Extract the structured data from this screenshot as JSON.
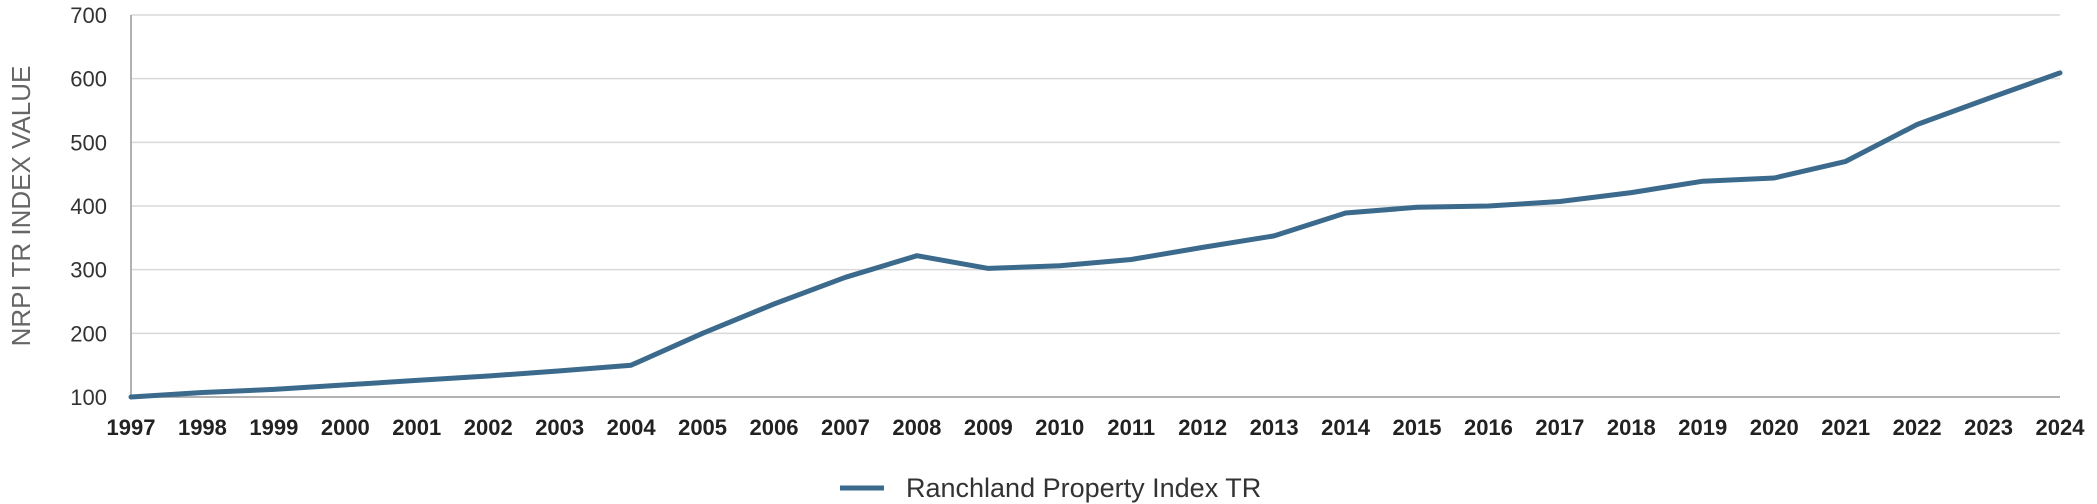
{
  "chart_data": {
    "type": "line",
    "ylabel": "NRPI TR INDEX VALUE",
    "xlabel": "",
    "ylim": [
      100,
      700
    ],
    "yticks": [
      100,
      200,
      300,
      400,
      500,
      600,
      700
    ],
    "grid": true,
    "legend_position": "bottom-center",
    "x": [
      "1997",
      "1998",
      "1999",
      "2000",
      "2001",
      "2002",
      "2003",
      "2004",
      "2005",
      "2006",
      "2007",
      "2008",
      "2009",
      "2010",
      "2011",
      "2012",
      "2013",
      "2014",
      "2015",
      "2016",
      "2017",
      "2018",
      "2019",
      "2020",
      "2021",
      "2022",
      "2023",
      "2024"
    ],
    "series": [
      {
        "name": "Ranchland Property Index TR",
        "color": "#3b6a8c",
        "values": [
          100,
          107,
          112,
          119,
          126,
          133,
          141,
          150,
          200,
          246,
          288,
          322,
          302,
          306,
          316,
          335,
          353,
          389,
          398,
          400,
          407,
          421,
          439,
          444,
          470,
          528,
          569,
          609
        ]
      }
    ]
  }
}
